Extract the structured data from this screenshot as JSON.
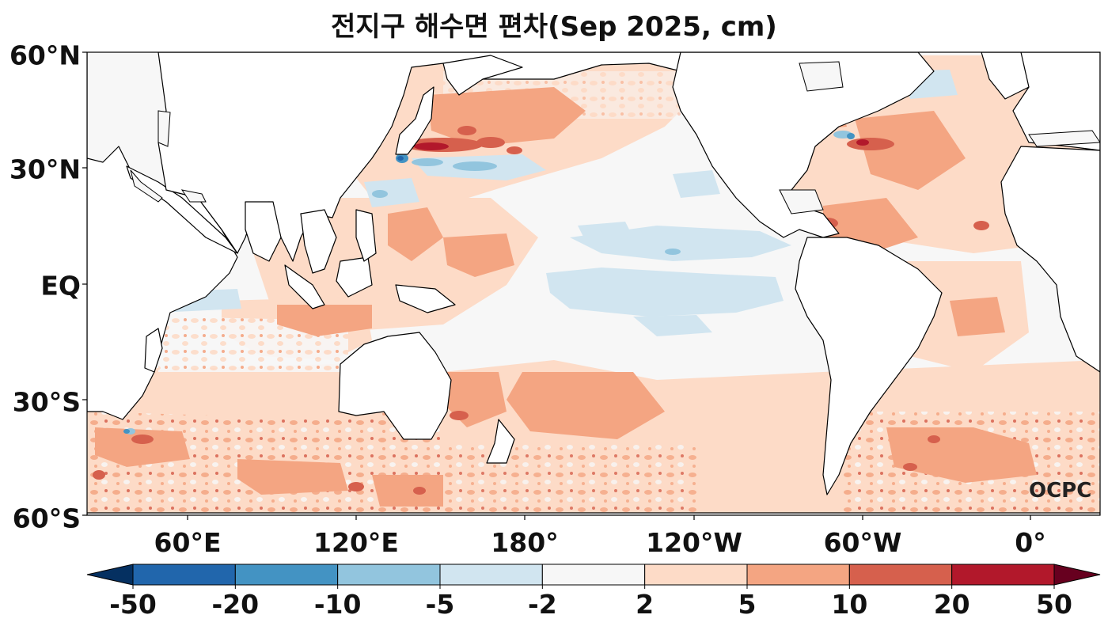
{
  "title": "전지구 해수면 편차(Sep 2025, cm)",
  "logo": "OCPC",
  "lat_labels": [
    "60°N",
    "30°N",
    "EQ",
    "30°S",
    "60°S"
  ],
  "lon_labels": [
    "60°E",
    "120°E",
    "180°",
    "120°W",
    "60°W",
    "0°"
  ],
  "colorbar": {
    "ticks": [
      "-50",
      "-20",
      "-10",
      "-5",
      "-2",
      "2",
      "5",
      "10",
      "20",
      "50"
    ],
    "colors": [
      "#053061",
      "#2166ac",
      "#4393c3",
      "#92c5de",
      "#d1e5f0",
      "#f7f7f7",
      "#fddbc7",
      "#f4a582",
      "#d6604d",
      "#b2182b",
      "#67001f"
    ],
    "extend": "both"
  },
  "palette": {
    "land": "#ffffff",
    "ocean_neutral": "#f7f7f7",
    "coast": "#000000"
  }
}
